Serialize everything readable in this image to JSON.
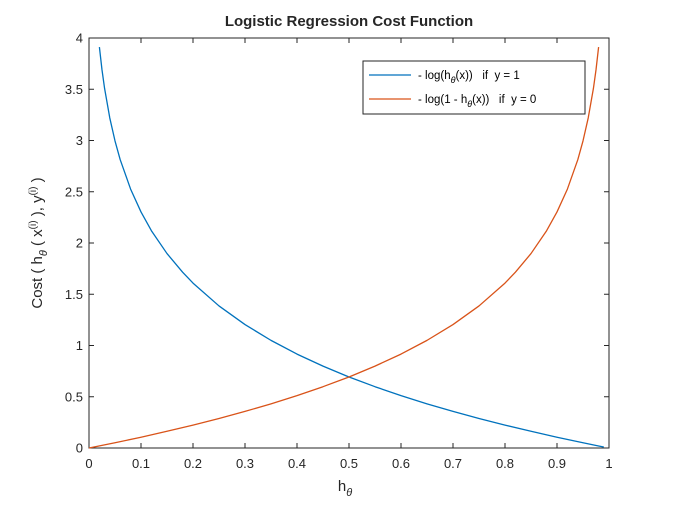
{
  "chart_data": {
    "type": "line",
    "title": "Logistic Regression Cost Function",
    "xlabel": {
      "base": "h",
      "sub": "θ"
    },
    "ylabel": {
      "prefix": "Cost ( h",
      "sub": "θ",
      "mid": " ( x",
      "sup1": "(i)",
      "mid2": " ), y",
      "sup2": "(i)",
      "suffix": " )"
    },
    "xlim": [
      0,
      1
    ],
    "ylim": [
      0,
      4
    ],
    "x_ticks": [
      0,
      0.1,
      0.2,
      0.3,
      0.4,
      0.5,
      0.6,
      0.7,
      0.8,
      0.9,
      1
    ],
    "x_tick_labels": [
      "0",
      "0.1",
      "0.2",
      "0.3",
      "0.4",
      "0.5",
      "0.6",
      "0.7",
      "0.8",
      "0.9",
      "1"
    ],
    "y_ticks": [
      0,
      0.5,
      1,
      1.5,
      2,
      2.5,
      3,
      3.5,
      4
    ],
    "y_tick_labels": [
      "0",
      "0.5",
      "1",
      "1.5",
      "2",
      "2.5",
      "3",
      "3.5",
      "4"
    ],
    "grid": false,
    "legend_position": "top-right",
    "series": [
      {
        "legend": {
          "pre": "- log(h",
          "sub": "θ",
          "post": "(x))   if  y = 1"
        },
        "color": "#0072BD",
        "x": [
          0.02,
          0.025,
          0.03,
          0.04,
          0.05,
          0.06,
          0.08,
          0.1,
          0.12,
          0.15,
          0.18,
          0.2,
          0.25,
          0.3,
          0.35,
          0.4,
          0.45,
          0.5,
          0.55,
          0.6,
          0.65,
          0.7,
          0.75,
          0.8,
          0.85,
          0.9,
          0.95,
          0.98,
          0.99
        ],
        "y": [
          3.912,
          3.689,
          3.507,
          3.219,
          2.996,
          2.813,
          2.526,
          2.303,
          2.12,
          1.897,
          1.715,
          1.609,
          1.386,
          1.204,
          1.05,
          0.916,
          0.799,
          0.693,
          0.598,
          0.511,
          0.431,
          0.357,
          0.288,
          0.223,
          0.163,
          0.105,
          0.051,
          0.02,
          0.01
        ]
      },
      {
        "legend": {
          "pre": "- log(1 - h",
          "sub": "θ",
          "post": "(x))   if  y = 0"
        },
        "color": "#D95319",
        "x": [
          0.0,
          0.05,
          0.1,
          0.15,
          0.2,
          0.25,
          0.3,
          0.35,
          0.4,
          0.45,
          0.5,
          0.55,
          0.6,
          0.65,
          0.7,
          0.75,
          0.8,
          0.82,
          0.85,
          0.88,
          0.9,
          0.92,
          0.94,
          0.95,
          0.96,
          0.97,
          0.975,
          0.98
        ],
        "y": [
          0.0,
          0.051,
          0.105,
          0.163,
          0.223,
          0.288,
          0.357,
          0.431,
          0.511,
          0.598,
          0.693,
          0.799,
          0.916,
          1.05,
          1.204,
          1.386,
          1.609,
          1.715,
          1.897,
          2.12,
          2.303,
          2.526,
          2.813,
          2.996,
          3.219,
          3.507,
          3.689,
          3.912
        ]
      }
    ]
  }
}
